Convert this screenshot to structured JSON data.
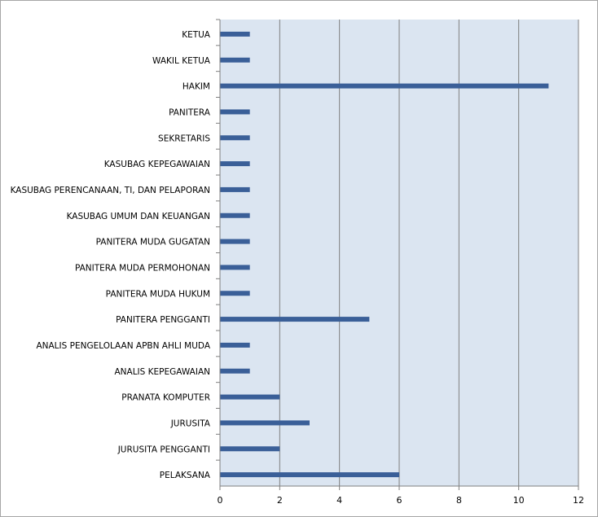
{
  "chart_data": {
    "type": "bar",
    "orientation": "horizontal",
    "categories": [
      "KETUA",
      "WAKIL KETUA",
      "HAKIM",
      "PANITERA",
      "SEKRETARIS",
      "KASUBAG KEPEGAWAIAN",
      "KASUBAG PERENCANAAN, TI, DAN PELAPORAN",
      "KASUBAG UMUM DAN KEUANGAN",
      "PANITERA MUDA GUGATAN",
      "PANITERA MUDA PERMOHONAN",
      "PANITERA MUDA HUKUM",
      "PANITERA PENGGANTI",
      "ANALIS PENGELOLAAN APBN AHLI MUDA",
      "ANALIS KEPEGAWAIAN",
      "PRANATA KOMPUTER",
      "JURUSITA",
      "JURUSITA PENGGANTI",
      "PELAKSANA"
    ],
    "values": [
      1,
      1,
      11,
      1,
      1,
      1,
      1,
      1,
      1,
      1,
      1,
      5,
      1,
      1,
      2,
      3,
      2,
      6
    ],
    "xlim": [
      0,
      12
    ],
    "xticks": [
      "0",
      "2",
      "4",
      "6",
      "8",
      "10",
      "12"
    ],
    "grid": "vertical",
    "legend": "none",
    "colors": {
      "bar": "#3a5f98",
      "plot_background": "#dbe5f1",
      "gridline": "#7f7f7f"
    }
  }
}
